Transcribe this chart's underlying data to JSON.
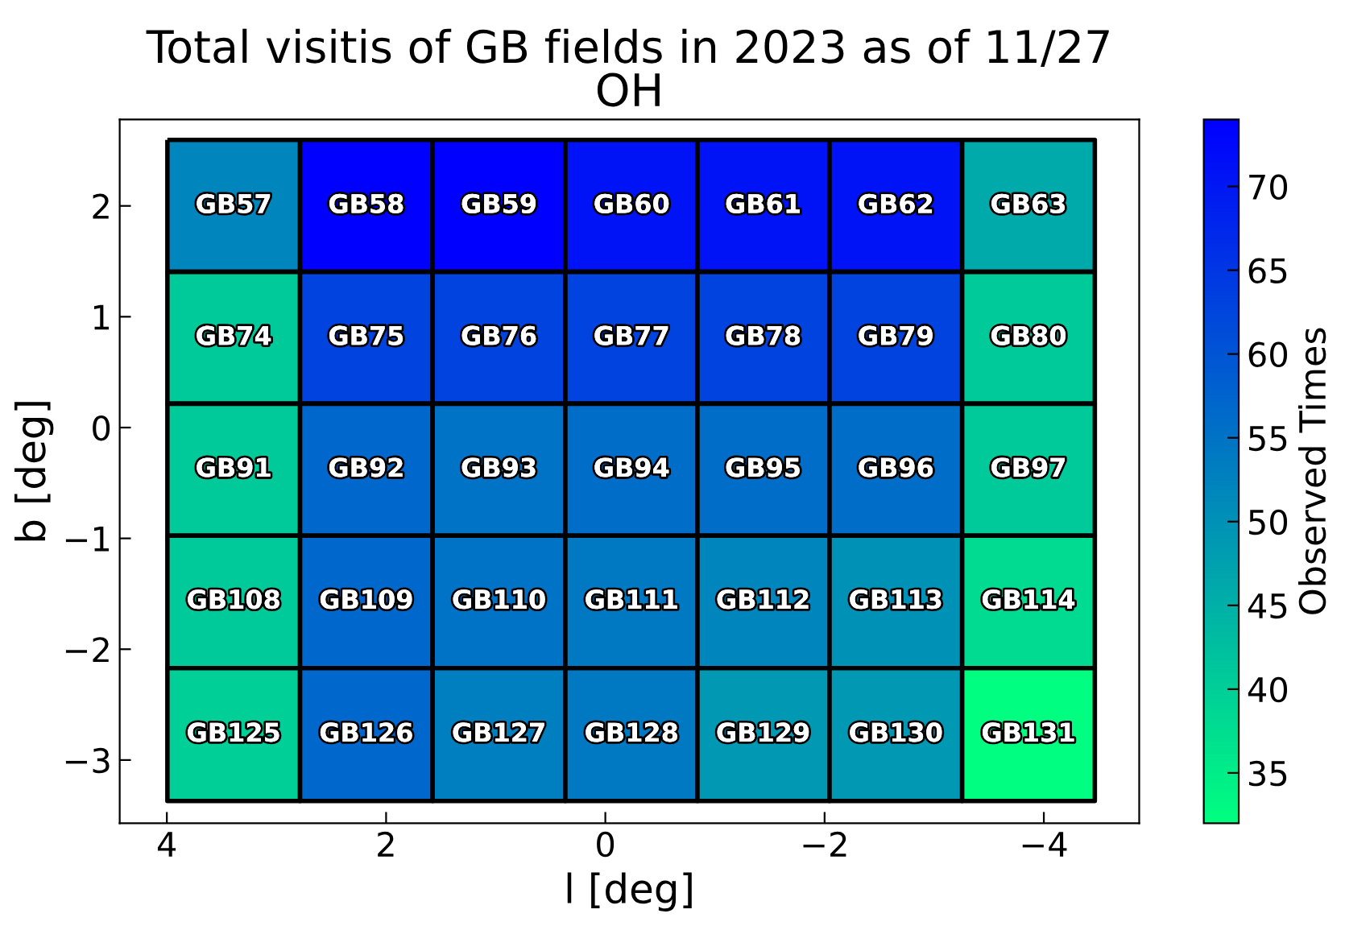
{
  "chart_data": {
    "type": "heatmap",
    "title": "Total visitis of GB fields in 2023 as of 11/27\nOH",
    "xlabel": "l [deg]",
    "ylabel": "b [deg]",
    "clabel": "Observed Times",
    "x": [
      3.39,
      2.18,
      0.97,
      -0.24,
      -1.44,
      -2.65,
      -3.86
    ],
    "y": [
      2.0,
      0.81,
      -0.38,
      -1.57,
      -2.77
    ],
    "cells": [
      [
        52,
        74,
        74,
        71,
        71,
        71,
        46
      ],
      [
        41,
        63,
        63,
        63,
        63,
        63,
        41
      ],
      [
        41,
        57,
        55,
        56,
        56,
        56,
        41
      ],
      [
        41,
        57,
        55,
        54,
        52,
        50,
        38
      ],
      [
        40,
        57,
        53,
        54,
        49,
        49,
        32
      ]
    ],
    "cell_labels": [
      [
        "GB57",
        "GB58",
        "GB59",
        "GB60",
        "GB61",
        "GB62",
        "GB63"
      ],
      [
        "GB74",
        "GB75",
        "GB76",
        "GB77",
        "GB78",
        "GB79",
        "GB80"
      ],
      [
        "GB91",
        "GB92",
        "GB93",
        "GB94",
        "GB95",
        "GB96",
        "GB97"
      ],
      [
        "GB108",
        "GB109",
        "GB110",
        "GB111",
        "GB112",
        "GB113",
        "GB114"
      ],
      [
        "GB125",
        "GB126",
        "GB127",
        "GB128",
        "GB129",
        "GB130",
        "GB131"
      ]
    ],
    "clim": [
      32,
      74
    ],
    "cticks": [
      35,
      40,
      45,
      50,
      55,
      60,
      65,
      70
    ],
    "xlim": [
      4.43,
      -4.87
    ],
    "ylim": [
      -3.57,
      2.78
    ],
    "xticks": [
      4,
      2,
      0,
      {
        "value": -2,
        "label": "−2"
      },
      {
        "value": -4,
        "label": "−4"
      }
    ],
    "yticks": [
      {
        "value": -3,
        "label": "−3"
      },
      {
        "value": -2,
        "label": "−2"
      },
      {
        "value": -1,
        "label": "−1"
      },
      0,
      1,
      2
    ],
    "grid": false
  }
}
